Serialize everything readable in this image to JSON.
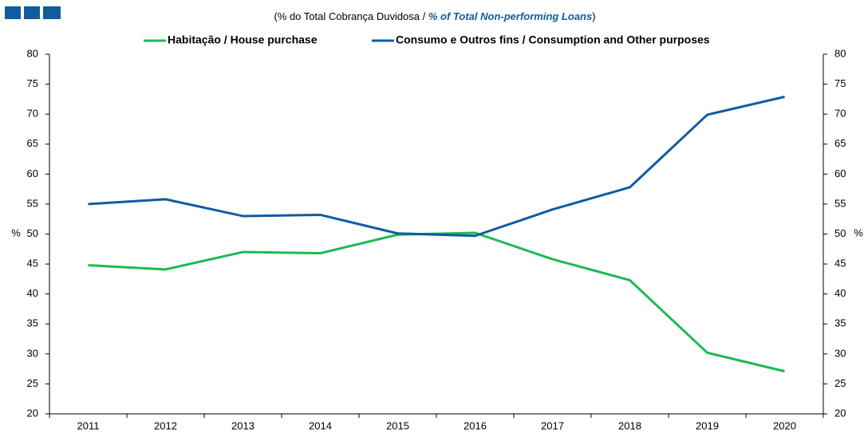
{
  "chart_data": {
    "type": "line",
    "subtitle": [
      "(% do Total Cobrança Duvidosa  /",
      "% of Total Non-performing Loans",
      ")"
    ],
    "ylabel": "%",
    "y2label": "%",
    "categories": [
      "2011",
      "2012",
      "2013",
      "2014",
      "2015",
      "2016",
      "2017",
      "2018",
      "2019",
      "2020"
    ],
    "series": [
      {
        "name": "Habitação / House purchase",
        "color": "#1db954",
        "values": [
          44.8,
          44.1,
          47.0,
          46.8,
          49.9,
          50.2,
          45.8,
          42.3,
          30.2,
          27.1
        ]
      },
      {
        "name": "Consumo e Outros fins / Consumption and Other purposes",
        "color": "#0f5c9e",
        "values": [
          55.0,
          55.8,
          53.0,
          53.2,
          50.1,
          49.7,
          54.1,
          57.8,
          69.9,
          72.9
        ]
      }
    ],
    "ylim": [
      20,
      80
    ],
    "yticks": [
      20,
      25,
      30,
      35,
      40,
      45,
      50,
      55,
      60,
      65,
      70,
      75,
      80
    ],
    "y2lim": [
      20,
      80
    ],
    "y2ticks": [
      20,
      25,
      30,
      35,
      40,
      45,
      50,
      55,
      60,
      65,
      70,
      75,
      80
    ],
    "legend": "top",
    "grid": false
  }
}
